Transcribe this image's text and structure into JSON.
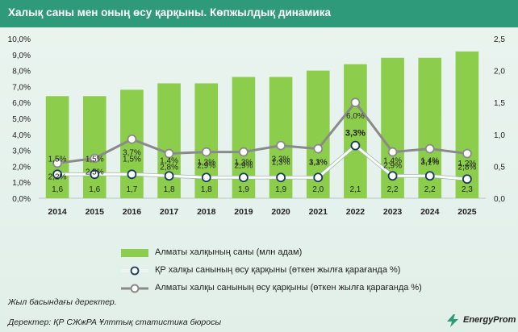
{
  "header": {
    "title": "Халық саны мен оның өсу қарқыны. Көпжылдық динамика"
  },
  "chart_data": {
    "type": "bar",
    "categories": [
      "2014",
      "2015",
      "2016",
      "2017",
      "2018",
      "2019",
      "2020",
      "2021",
      "2022",
      "2023",
      "2024",
      "2025"
    ],
    "series": [
      {
        "name": "Алматы халқының саны (млн адам)",
        "kind": "bar",
        "axis": "right",
        "values": [
          1.6,
          1.6,
          1.7,
          1.8,
          1.8,
          1.9,
          1.9,
          2.0,
          2.1,
          2.2,
          2.2,
          2.3
        ],
        "labels": [
          "1,6",
          "1,6",
          "1,7",
          "1,8",
          "1,8",
          "1,9",
          "1,9",
          "2,0",
          "2,1",
          "2,2",
          "2,2",
          "2,3"
        ]
      },
      {
        "name": "ҚР халқы санының өсу қарқыны (өткен жылға қарағанда %)",
        "kind": "line",
        "axis": "left",
        "values": [
          1.5,
          1.5,
          1.5,
          1.4,
          1.3,
          1.3,
          1.3,
          1.3,
          3.3,
          1.4,
          1.4,
          1.2
        ],
        "labels": [
          "1,5%",
          "1,5%",
          "1,5%",
          "1,4%",
          "1,3%",
          "1,3%",
          "1,3%",
          "1,3%",
          "3,3%",
          "1,4%",
          "1,4%",
          "1,2%"
        ]
      },
      {
        "name": "Алматы халқы санының өсу қарқыны (өткен жылға қарағанда %)",
        "kind": "line",
        "axis": "left",
        "values": [
          2.2,
          2.5,
          3.7,
          2.8,
          2.9,
          2.9,
          3.3,
          3.1,
          6.0,
          2.9,
          3.1,
          2.8
        ],
        "labels": [
          "2,2%",
          "2,5%",
          "3,7%",
          "2,8%",
          "2,9%",
          "2,9%",
          "3,3%",
          "3,1%",
          "6,0%",
          "2,9%",
          "3,1%",
          "2,8%"
        ]
      }
    ],
    "y_left": {
      "ticks": [
        "0,0%",
        "1,0%",
        "2,0%",
        "3,0%",
        "4,0%",
        "5,0%",
        "6,0%",
        "7,0%",
        "8,0%",
        "9,0%",
        "10,0%"
      ],
      "range": [
        0,
        10
      ]
    },
    "y_right": {
      "ticks": [
        "0,0",
        "0,5",
        "1,0",
        "1,5",
        "2,0",
        "2,5"
      ],
      "range": [
        0,
        2.5
      ]
    },
    "grid": false,
    "legend": "bottom",
    "colors": {
      "bar": "#8ccd4c",
      "line_kz": "#ffffff",
      "line_kz_marker": "#1a3a5c",
      "line_almaty": "#8a8a8a",
      "title_bg": "#2f9a7a"
    }
  },
  "legend": {
    "items": [
      "Алматы халқының саны (млн адам)",
      "ҚР халқы санының өсу қарқыны (өткен жылға қарағанда %)",
      "Алматы халқы санының өсу қарқыны (өткен жылға қарағанда %)"
    ]
  },
  "footer": {
    "note": "Жыл басындағы деректер.",
    "source": "Деректер: ҚР СЖжРА Ұлттық статистика бюросы",
    "brand": "EnergyProm"
  }
}
